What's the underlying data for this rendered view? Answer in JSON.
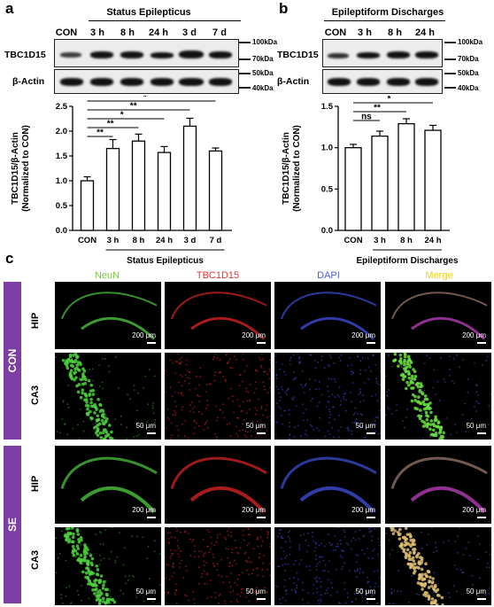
{
  "panels": {
    "a": {
      "letter": "a",
      "conditions": [
        "CON",
        "3 h",
        "8 h",
        "24 h",
        "3 d",
        "7 d"
      ],
      "group_label": "Status Epilepticus",
      "blot_labels": [
        "TBC1D15",
        "β-Actin"
      ],
      "mw_markers_top": [
        "100kDa",
        "70kDa"
      ],
      "mw_markers_bottom": [
        "50kDa",
        "40kDa"
      ]
    },
    "b": {
      "letter": "b",
      "conditions": [
        "CON",
        "3 h",
        "8 h",
        "24 h"
      ],
      "group_label": "Epileptiform Discharges",
      "blot_labels": [
        "TBC1D15",
        "β-Actin"
      ],
      "mw_markers_top": [
        "100kDa",
        "70kDa"
      ],
      "mw_markers_bottom": [
        "50kDa",
        "40kDa"
      ]
    },
    "c": {
      "letter": "c",
      "channels": [
        "NeuN",
        "TBC1D15",
        "DAPI",
        "Merge"
      ],
      "channel_colors": [
        "#7ac943",
        "#e83030",
        "#4a5ad8",
        "#e8e830"
      ],
      "groups": [
        "CON",
        "SE"
      ],
      "regions": [
        "HIP",
        "CA3"
      ],
      "scale_hip": "200 μm",
      "scale_ca3": "50 μm"
    }
  },
  "chart_data": [
    {
      "type": "bar",
      "categories": [
        "CON",
        "3 h",
        "8 h",
        "24 h",
        "3 d",
        "7 d"
      ],
      "values": [
        1.0,
        1.65,
        1.8,
        1.57,
        2.1,
        1.6
      ],
      "errors": [
        0.08,
        0.18,
        0.14,
        0.12,
        0.16,
        0.06
      ],
      "ylabel": "TBC1D15/β-Actin\n(Normalized to CON)",
      "ylabel_lines": [
        "TBC1D15/β-Actin",
        "(Normalized to CON)"
      ],
      "xlabel": "Status Epilepticus",
      "ylim": [
        0,
        2.5
      ],
      "yticks": [
        "0.0",
        "0.5",
        "1.0",
        "1.5",
        "2.0",
        "2.5"
      ],
      "significance": [
        {
          "from": 0,
          "to": 1,
          "label": "**"
        },
        {
          "from": 0,
          "to": 2,
          "label": "**"
        },
        {
          "from": 0,
          "to": 3,
          "label": "*"
        },
        {
          "from": 0,
          "to": 4,
          "label": "**"
        },
        {
          "from": 0,
          "to": 5,
          "label": "*"
        }
      ]
    },
    {
      "type": "bar",
      "categories": [
        "CON",
        "3 h",
        "8 h",
        "24 h"
      ],
      "values": [
        1.0,
        1.14,
        1.29,
        1.21
      ],
      "errors": [
        0.04,
        0.06,
        0.06,
        0.06
      ],
      "ylabel": "TBC1D15/β-Actin\n(Normalized to CON)",
      "ylabel_lines": [
        "TBC1D15/β-Actin",
        "(Normalized to CON)"
      ],
      "xlabel": "Epileptiform Discharges",
      "ylim": [
        0,
        1.5
      ],
      "yticks": [
        "0.0",
        "0.5",
        "1.0",
        "1.5"
      ],
      "significance": [
        {
          "from": 0,
          "to": 1,
          "label": "ns"
        },
        {
          "from": 0,
          "to": 2,
          "label": "**"
        },
        {
          "from": 0,
          "to": 3,
          "label": "*"
        }
      ]
    }
  ]
}
